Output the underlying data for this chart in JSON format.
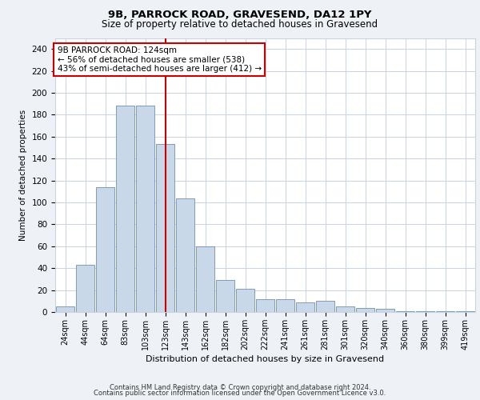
{
  "title1": "9B, PARROCK ROAD, GRAVESEND, DA12 1PY",
  "title2": "Size of property relative to detached houses in Gravesend",
  "xlabel": "Distribution of detached houses by size in Gravesend",
  "ylabel": "Number of detached properties",
  "categories": [
    "24sqm",
    "44sqm",
    "64sqm",
    "83sqm",
    "103sqm",
    "123sqm",
    "143sqm",
    "162sqm",
    "182sqm",
    "202sqm",
    "222sqm",
    "241sqm",
    "261sqm",
    "281sqm",
    "301sqm",
    "320sqm",
    "340sqm",
    "360sqm",
    "380sqm",
    "399sqm",
    "419sqm"
  ],
  "values": [
    5,
    43,
    114,
    188,
    188,
    153,
    104,
    60,
    29,
    21,
    12,
    12,
    9,
    10,
    5,
    4,
    3,
    1,
    1,
    1,
    1
  ],
  "bar_color": "#c8d8e8",
  "bar_edge_color": "#7090b0",
  "vline_x": 5,
  "vline_color": "#cc0000",
  "annotation_text": "9B PARROCK ROAD: 124sqm\n← 56% of detached houses are smaller (538)\n43% of semi-detached houses are larger (412) →",
  "annotation_box_color": "#ffffff",
  "annotation_box_edge": "#cc0000",
  "ylim": [
    0,
    250
  ],
  "yticks": [
    0,
    20,
    40,
    60,
    80,
    100,
    120,
    140,
    160,
    180,
    200,
    220,
    240
  ],
  "footer1": "Contains HM Land Registry data © Crown copyright and database right 2024.",
  "footer2": "Contains public sector information licensed under the Open Government Licence v3.0.",
  "bg_color": "#eef2f7",
  "plot_bg_color": "#ffffff",
  "grid_color": "#c8d4e4"
}
